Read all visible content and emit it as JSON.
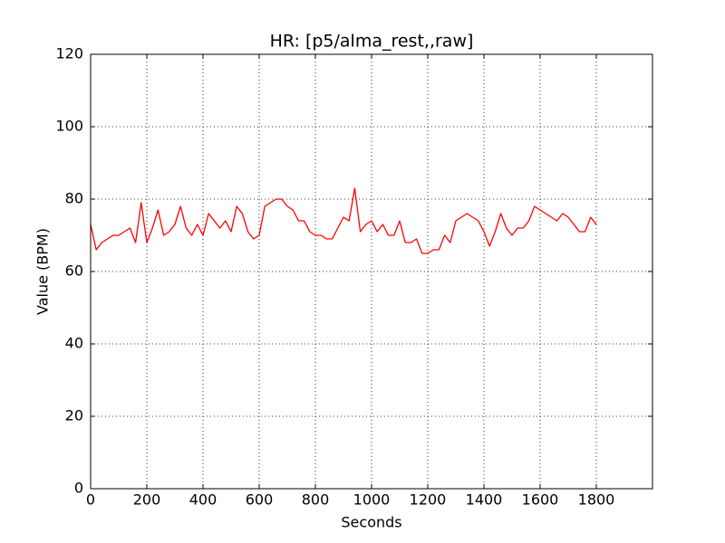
{
  "chart_data": {
    "type": "line",
    "title": "HR: [p5/alma_rest,,raw]",
    "x_label": "Seconds",
    "y_label": "Value (BPM)",
    "x": [
      0,
      20,
      40,
      60,
      80,
      100,
      120,
      140,
      160,
      180,
      200,
      220,
      240,
      260,
      280,
      300,
      320,
      340,
      360,
      380,
      400,
      420,
      440,
      460,
      480,
      500,
      520,
      540,
      560,
      580,
      600,
      620,
      640,
      660,
      680,
      700,
      720,
      740,
      760,
      780,
      800,
      820,
      840,
      860,
      880,
      900,
      920,
      940,
      960,
      980,
      1000,
      1020,
      1040,
      1060,
      1080,
      1100,
      1120,
      1140,
      1160,
      1180,
      1200,
      1220,
      1240,
      1260,
      1280,
      1300,
      1320,
      1340,
      1360,
      1380,
      1400,
      1420,
      1440,
      1460,
      1480,
      1500,
      1520,
      1540,
      1560,
      1580,
      1600,
      1620,
      1640,
      1660,
      1680,
      1700,
      1720,
      1740,
      1760,
      1780,
      1800
    ],
    "values": [
      73,
      66,
      68,
      69,
      70,
      70,
      71,
      72,
      68,
      79,
      68,
      72,
      77,
      70,
      71,
      73,
      78,
      72,
      70,
      73,
      70,
      76,
      74,
      72,
      74,
      71,
      78,
      76,
      71,
      69,
      70,
      78,
      79,
      80,
      80,
      78,
      77,
      74,
      74,
      71,
      70,
      70,
      69,
      69,
      72,
      75,
      74,
      83,
      71,
      73,
      74,
      71,
      73,
      70,
      70,
      74,
      68,
      68,
      69,
      65,
      65,
      66,
      66,
      70,
      68,
      74,
      75,
      76,
      75,
      74,
      71,
      67,
      71,
      76,
      72,
      70,
      72,
      72,
      74,
      78,
      77,
      76,
      75,
      74,
      76,
      75,
      73,
      71,
      71,
      75,
      73
    ],
    "color": "#ff0000",
    "xlim": [
      0,
      2000
    ],
    "xticks": [
      0,
      200,
      400,
      600,
      800,
      1000,
      1200,
      1400,
      1600,
      1800
    ],
    "ylim": [
      0,
      120
    ],
    "yticks": [
      0,
      20,
      40,
      60,
      80,
      100,
      120
    ],
    "grid": true
  }
}
